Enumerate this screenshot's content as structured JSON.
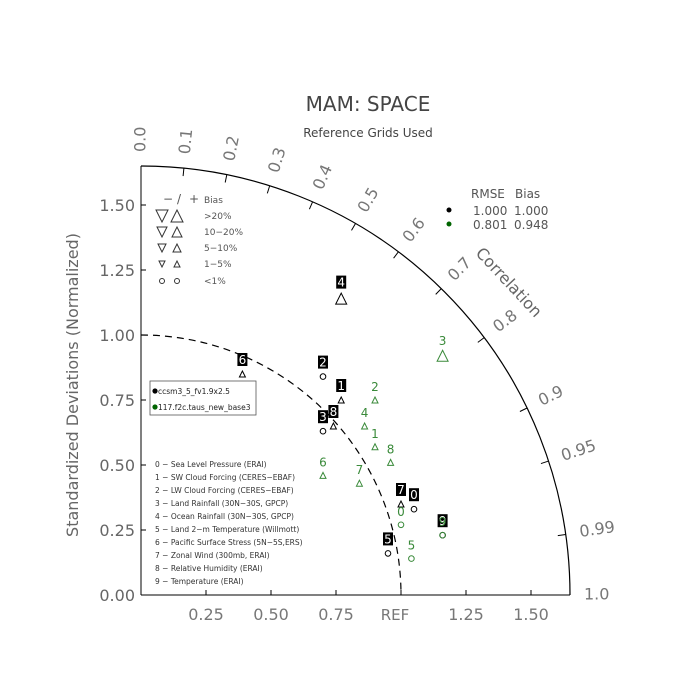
{
  "chart_data": {
    "type": "scatter",
    "subtype": "taylor-diagram",
    "title": "MAM: SPACE",
    "subtitle": "Reference Grids Used",
    "ylabel": "Standardized Deviations (Normalized)",
    "arc_label": "Correlation",
    "ref_label": "REF",
    "range": [
      0,
      1.65
    ],
    "grid": false,
    "y_ticks": [
      "0.00",
      "0.25",
      "0.50",
      "0.75",
      "1.00",
      "1.25",
      "1.50"
    ],
    "x_ticks": [
      "0.25",
      "0.50",
      "0.75",
      "1.25",
      "1.50"
    ],
    "correlation_ticks": [
      "0.0",
      "0.1",
      "0.2",
      "0.3",
      "0.4",
      "0.5",
      "0.6",
      "0.7",
      "0.8",
      "0.9",
      "0.95",
      "0.99",
      "1.0"
    ],
    "bias_legend": {
      "header": [
        "−",
        "/",
        "+",
        "Bias"
      ],
      "rows": [
        ">20%",
        "10−20%",
        "5−10%",
        "1−5%",
        "<1%"
      ]
    },
    "stats_legend": {
      "header": [
        "RMSE",
        "Bias"
      ],
      "rows": [
        {
          "rmse": "1.000",
          "bias": "1.000",
          "color": "#000000"
        },
        {
          "rmse": "0.801",
          "bias": "0.948",
          "color": "#006400"
        }
      ]
    },
    "model_legend": [
      {
        "name": "ccsm3_5_fv1.9x2.5",
        "color": "#000000"
      },
      {
        "name": "117.f2c.taus_new_base3",
        "color": "#006400"
      }
    ],
    "variables": [
      "0 − Sea Level Pressure (ERAI)",
      "1 − SW Cloud Forcing (CERES−EBAF)",
      "2 − LW Cloud Forcing (CERES−EBAF)",
      "3 − Land Rainfall (30N−30S, GPCP)",
      "4 − Ocean Rainfall (30N−30S, GPCP)",
      "5 − Land 2−m Temperature (Willmott)",
      "6 − Pacific Surface Stress (5N−5S,ERS)",
      "7 − Zonal Wind (300mb, ERAI)",
      "8 − Relative Humidity (ERAI)",
      "9 − Temperature (ERAI)"
    ],
    "series": [
      {
        "name": "ccsm3_5_fv1.9x2.5",
        "color": "#000000",
        "label_style": "boxed",
        "points": [
          {
            "id": "0",
            "x": 1.05,
            "y": 0.33,
            "marker": "circle"
          },
          {
            "id": "1",
            "x": 0.77,
            "y": 0.75,
            "marker": "triangle-up"
          },
          {
            "id": "2",
            "x": 0.7,
            "y": 0.84,
            "marker": "circle"
          },
          {
            "id": "3",
            "x": 0.7,
            "y": 0.63,
            "marker": "circle"
          },
          {
            "id": "4",
            "x": 0.77,
            "y": 1.14,
            "marker": "triangle-up-large"
          },
          {
            "id": "5",
            "x": 0.95,
            "y": 0.16,
            "marker": "circle"
          },
          {
            "id": "6",
            "x": 0.39,
            "y": 0.85,
            "marker": "triangle-up"
          },
          {
            "id": "7",
            "x": 1.0,
            "y": 0.35,
            "marker": "triangle-up"
          },
          {
            "id": "8",
            "x": 0.74,
            "y": 0.65,
            "marker": "triangle-up"
          },
          {
            "id": "9",
            "x": 1.16,
            "y": 0.23,
            "marker": "circle"
          }
        ]
      },
      {
        "name": "117.f2c.taus_new_base3",
        "color": "#3a8a3a",
        "label_style": "plain",
        "points": [
          {
            "id": "0",
            "x": 1.0,
            "y": 0.27,
            "marker": "circle"
          },
          {
            "id": "1",
            "x": 0.9,
            "y": 0.57,
            "marker": "triangle-up"
          },
          {
            "id": "2",
            "x": 0.9,
            "y": 0.75,
            "marker": "triangle-up"
          },
          {
            "id": "3",
            "x": 1.16,
            "y": 0.92,
            "marker": "triangle-up-large"
          },
          {
            "id": "4",
            "x": 0.86,
            "y": 0.65,
            "marker": "triangle-up"
          },
          {
            "id": "5",
            "x": 1.04,
            "y": 0.14,
            "marker": "circle"
          },
          {
            "id": "6",
            "x": 0.7,
            "y": 0.46,
            "marker": "triangle-up"
          },
          {
            "id": "7",
            "x": 0.84,
            "y": 0.43,
            "marker": "triangle-up"
          },
          {
            "id": "8",
            "x": 0.96,
            "y": 0.51,
            "marker": "triangle-up"
          },
          {
            "id": "9",
            "x": 1.16,
            "y": 0.23,
            "marker": "circle"
          }
        ]
      }
    ]
  }
}
